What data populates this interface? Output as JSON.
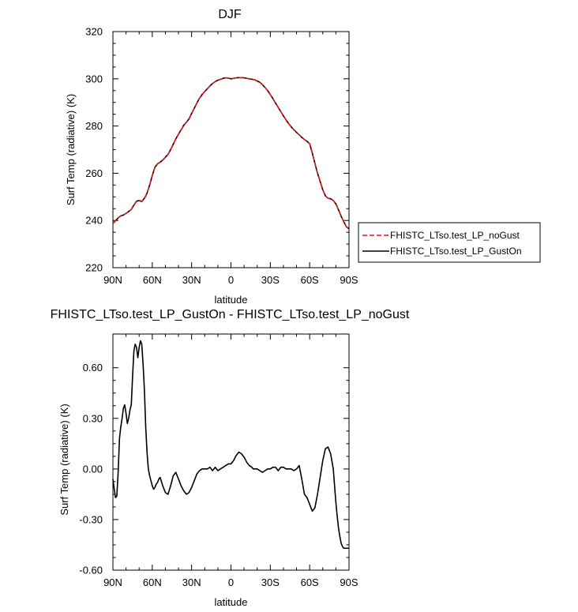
{
  "chart_data": [
    {
      "type": "line",
      "title": "DJF",
      "xlabel": "latitude",
      "ylabel": "Surf Temp (radiative) (K)",
      "xlim": [
        -90,
        90
      ],
      "ylim": [
        220,
        320
      ],
      "x_tick_values": [
        -90,
        -60,
        -30,
        0,
        30,
        60,
        90
      ],
      "x_tick_labels": [
        "90N",
        "60N",
        "30N",
        "0",
        "30S",
        "60S",
        "90S"
      ],
      "y_tick_values": [
        220,
        240,
        260,
        280,
        300,
        320
      ],
      "y_tick_labels": [
        "220",
        "240",
        "260",
        "280",
        "300",
        "320"
      ],
      "legend_position": "right",
      "x": [
        -90,
        -88,
        -86,
        -84,
        -82,
        -80,
        -78,
        -76,
        -74,
        -72,
        -70,
        -68,
        -66,
        -64,
        -62,
        -60,
        -58,
        -56,
        -54,
        -52,
        -50,
        -48,
        -46,
        -44,
        -42,
        -40,
        -38,
        -36,
        -34,
        -32,
        -30,
        -28,
        -26,
        -24,
        -22,
        -20,
        -18,
        -16,
        -14,
        -12,
        -10,
        -8,
        -6,
        -4,
        -2,
        0,
        2,
        4,
        6,
        8,
        10,
        12,
        14,
        16,
        18,
        20,
        22,
        24,
        26,
        28,
        30,
        32,
        34,
        36,
        38,
        40,
        42,
        44,
        46,
        48,
        50,
        52,
        54,
        56,
        58,
        60,
        62,
        64,
        66,
        68,
        70,
        72,
        74,
        76,
        78,
        80,
        82,
        84,
        86,
        88,
        90
      ],
      "series": [
        {
          "name": "FHISTC_LTso.test_LP_noGust",
          "color": "#e8161a",
          "dash": "dashed",
          "values": [
            238.8,
            239.8,
            241.2,
            242.0,
            242.3,
            243.0,
            243.8,
            244.7,
            246.5,
            248.1,
            248.5,
            248.2,
            249.2,
            251.5,
            255.0,
            259.0,
            262.7,
            264.0,
            264.7,
            265.6,
            266.8,
            268.0,
            270.0,
            272.3,
            274.6,
            276.6,
            278.4,
            280.3,
            281.6,
            283.0,
            285.3,
            287.5,
            289.7,
            291.8,
            293.3,
            294.6,
            295.8,
            297.0,
            298.0,
            298.8,
            299.4,
            299.8,
            300.2,
            300.4,
            300.3,
            300.0,
            300.2,
            300.4,
            300.5,
            300.5,
            300.4,
            300.2,
            300.0,
            299.8,
            299.6,
            299.1,
            298.5,
            297.5,
            296.3,
            295.0,
            293.3,
            291.6,
            289.7,
            287.9,
            286.1,
            284.3,
            282.6,
            281.0,
            279.6,
            278.4,
            277.3,
            276.3,
            275.2,
            274.3,
            273.5,
            272.5,
            268.6,
            264.2,
            260.0,
            256.5,
            253.0,
            250.4,
            249.4,
            249.2,
            248.5,
            247.0,
            244.5,
            241.8,
            239.5,
            237.3,
            236.5
          ]
        },
        {
          "name": "FHISTC_LTso.test_LP_GustOn",
          "color": "#000000",
          "dash": "solid",
          "values": [
            238.8,
            239.9,
            241.1,
            242.0,
            242.3,
            243.0,
            243.8,
            244.7,
            246.5,
            248.2,
            248.4,
            248.0,
            249.4,
            251.6,
            255.0,
            259.0,
            262.5,
            264.0,
            264.7,
            265.6,
            266.8,
            268.0,
            270.0,
            272.3,
            274.6,
            276.6,
            278.4,
            280.3,
            281.6,
            283.0,
            285.3,
            287.5,
            289.7,
            291.8,
            293.3,
            294.6,
            295.8,
            297.0,
            298.0,
            298.8,
            299.4,
            299.8,
            300.2,
            300.4,
            300.3,
            300.0,
            300.2,
            300.4,
            300.5,
            300.5,
            300.4,
            300.2,
            300.0,
            299.8,
            299.6,
            299.1,
            298.5,
            297.5,
            296.3,
            295.0,
            293.3,
            291.6,
            289.7,
            287.9,
            286.1,
            284.3,
            282.6,
            281.0,
            279.6,
            278.4,
            277.3,
            276.3,
            275.2,
            274.3,
            273.5,
            272.5,
            268.6,
            264.2,
            260.0,
            256.5,
            253.0,
            250.4,
            249.4,
            249.2,
            248.5,
            247.0,
            244.5,
            241.8,
            239.5,
            237.3,
            236.5
          ]
        }
      ]
    },
    {
      "type": "line",
      "title": "FHISTC_LTso.test_LP_GustOn - FHISTC_LTso.test_LP_noGust",
      "xlabel": "latitude",
      "ylabel": "Surf Temp (radiative) (K)",
      "xlim": [
        -90,
        90
      ],
      "ylim": [
        -0.6,
        0.8
      ],
      "x_tick_values": [
        -90,
        -60,
        -30,
        0,
        30,
        60,
        90
      ],
      "x_tick_labels": [
        "90N",
        "60N",
        "30N",
        "0",
        "30S",
        "60S",
        "90S"
      ],
      "y_tick_values": [
        -0.6,
        -0.3,
        0.0,
        0.3,
        0.6
      ],
      "y_tick_labels": [
        "-0.60",
        "-0.30",
        "0.00",
        "0.30",
        "0.60"
      ],
      "x": [
        -90,
        -89,
        -88,
        -87,
        -86,
        -85,
        -84,
        -83,
        -82,
        -81,
        -80,
        -79,
        -78,
        -77,
        -76,
        -75,
        -74,
        -73,
        -72,
        -71,
        -70,
        -69,
        -68,
        -67,
        -66,
        -65,
        -64,
        -63,
        -62,
        -61,
        -60,
        -59,
        -58,
        -57,
        -56,
        -55,
        -54,
        -52,
        -50,
        -48,
        -46,
        -45,
        -44,
        -42,
        -40,
        -38,
        -36,
        -35,
        -34,
        -32,
        -30,
        -28,
        -26,
        -24,
        -22,
        -20,
        -18,
        -16,
        -14,
        -12,
        -10,
        -8,
        -6,
        -4,
        -2,
        0,
        2,
        4,
        6,
        8,
        10,
        12,
        14,
        16,
        17,
        18,
        19,
        20,
        22,
        24,
        26,
        28,
        30,
        32,
        34,
        36,
        38,
        40,
        42,
        44,
        46,
        48,
        50,
        52,
        54,
        56,
        58,
        60,
        62,
        64,
        66,
        68,
        70,
        72,
        74,
        76,
        78,
        79,
        80,
        81,
        82,
        83,
        84,
        85,
        86,
        87,
        88,
        89,
        90
      ],
      "values": [
        -0.06,
        -0.12,
        -0.17,
        -0.16,
        -0.02,
        0.18,
        0.25,
        0.3,
        0.36,
        0.38,
        0.33,
        0.27,
        0.3,
        0.35,
        0.38,
        0.55,
        0.7,
        0.74,
        0.72,
        0.66,
        0.72,
        0.76,
        0.74,
        0.62,
        0.47,
        0.25,
        0.1,
        0.0,
        -0.04,
        -0.07,
        -0.1,
        -0.12,
        -0.11,
        -0.09,
        -0.08,
        -0.06,
        -0.05,
        -0.1,
        -0.14,
        -0.15,
        -0.1,
        -0.07,
        -0.04,
        -0.02,
        -0.06,
        -0.1,
        -0.13,
        -0.14,
        -0.15,
        -0.14,
        -0.11,
        -0.07,
        -0.03,
        -0.01,
        0.0,
        0.0,
        0.0,
        0.01,
        -0.01,
        0.01,
        -0.01,
        0.0,
        0.01,
        0.02,
        0.03,
        0.03,
        0.05,
        0.08,
        0.1,
        0.09,
        0.07,
        0.04,
        0.02,
        0.01,
        0.0,
        0.0,
        0.0,
        0.0,
        -0.01,
        -0.02,
        -0.01,
        0.0,
        0.0,
        0.01,
        0.01,
        -0.01,
        0.01,
        0.01,
        0.0,
        0.0,
        0.0,
        -0.01,
        0.0,
        0.02,
        -0.06,
        -0.15,
        -0.17,
        -0.21,
        -0.25,
        -0.23,
        -0.15,
        -0.05,
        0.05,
        0.12,
        0.13,
        0.09,
        0.0,
        -0.1,
        -0.2,
        -0.28,
        -0.35,
        -0.4,
        -0.44,
        -0.46,
        -0.47,
        -0.47,
        -0.47,
        -0.47,
        -0.47
      ]
    }
  ]
}
